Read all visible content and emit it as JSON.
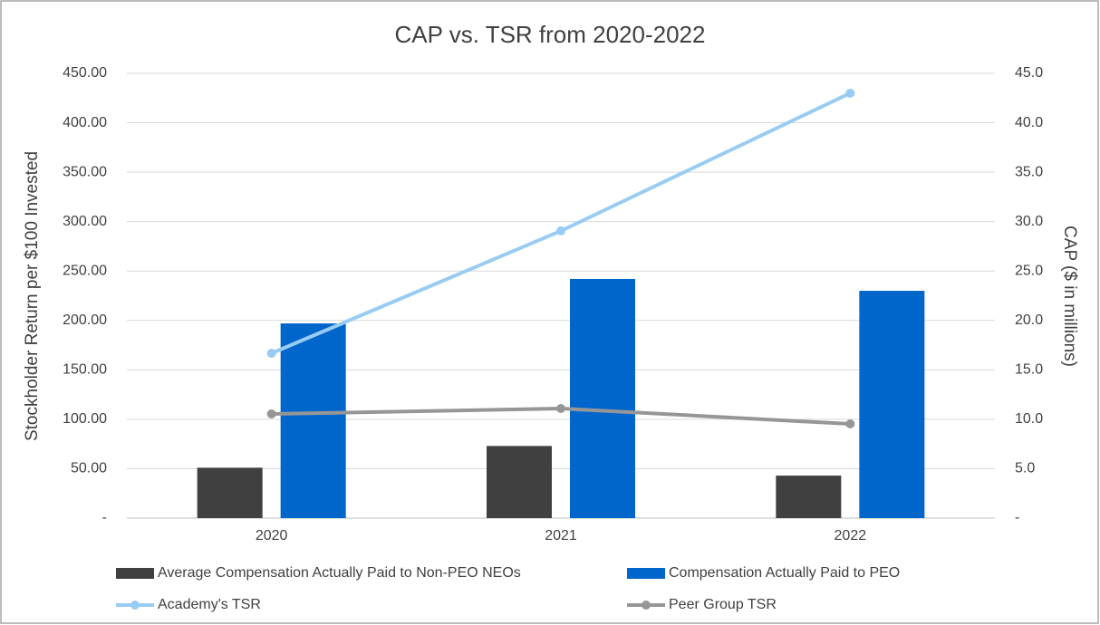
{
  "chart_data": {
    "type": "bar",
    "title": "CAP vs. TSR from 2020-2022",
    "y_label": "Stockholder Return per $100 Invested",
    "y2_label": "CAP ($ in millions)",
    "categories": [
      "2020",
      "2021",
      "2022"
    ],
    "series": [
      {
        "name": "Average Compensation Actually Paid to Non-PEO NEOs",
        "type": "bar",
        "axis": "y2",
        "color": "#404040",
        "values": [
          5.1,
          7.3,
          4.3
        ]
      },
      {
        "name": "Compensation Actually Paid to PEO",
        "type": "bar",
        "axis": "y2",
        "color": "#0066cc",
        "values": [
          19.7,
          24.2,
          23.0
        ]
      },
      {
        "name": "Academy's TSR",
        "type": "line",
        "axis": "y",
        "color": "#99ccf3",
        "values": [
          166.8,
          290.6,
          430.0
        ]
      },
      {
        "name": "Peer Group TSR",
        "type": "line",
        "axis": "y",
        "color": "#969696",
        "values": [
          105.4,
          110.9,
          95.3
        ]
      }
    ],
    "ylim": [
      0,
      450
    ],
    "yticks": [
      {
        "value": 0,
        "label": "-"
      },
      {
        "value": 50,
        "label": "50.00"
      },
      {
        "value": 100,
        "label": "100.00"
      },
      {
        "value": 150,
        "label": "150.00"
      },
      {
        "value": 200,
        "label": "200.00"
      },
      {
        "value": 250,
        "label": "250.00"
      },
      {
        "value": 300,
        "label": "300.00"
      },
      {
        "value": 350,
        "label": "350.00"
      },
      {
        "value": 400,
        "label": "400.00"
      },
      {
        "value": 450,
        "label": "450.00"
      }
    ],
    "y2lim": [
      0,
      45
    ],
    "y2ticks": [
      {
        "value": 0,
        "label": "-"
      },
      {
        "value": 5,
        "label": "5.0"
      },
      {
        "value": 10,
        "label": "10.0"
      },
      {
        "value": 15,
        "label": "15.0"
      },
      {
        "value": 20,
        "label": "20.0"
      },
      {
        "value": 25,
        "label": "25.0"
      },
      {
        "value": 30,
        "label": "30.0"
      },
      {
        "value": 35,
        "label": "35.0"
      },
      {
        "value": 40,
        "label": "40.0"
      },
      {
        "value": 45,
        "label": "45.0"
      }
    ],
    "grid": true,
    "legend": "bottom"
  }
}
